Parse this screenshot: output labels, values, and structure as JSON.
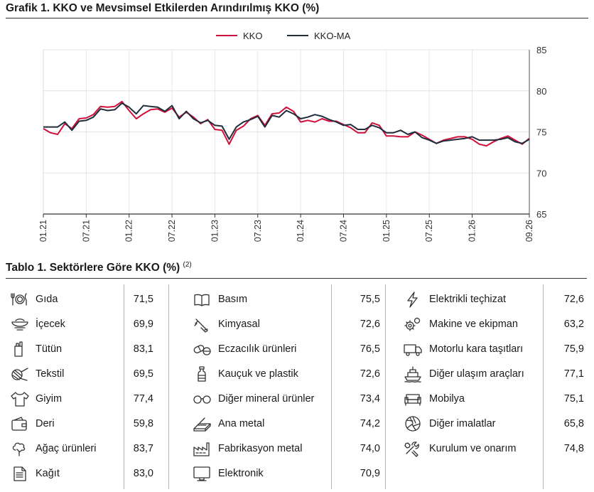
{
  "figure_title": "Grafik 1. KKO ve Mevsimsel Etkilerden Arındırılmış KKO (%)",
  "chart_data": {
    "type": "line",
    "x_ticks": [
      "01.21",
      "07.21",
      "01.22",
      "07.22",
      "01.23",
      "07.23",
      "01.24",
      "07.24",
      "01.25",
      "07.25",
      "01.26",
      "09.26"
    ],
    "y_ticks": [
      65,
      70,
      75,
      80,
      85
    ],
    "ylim": [
      65,
      85
    ],
    "x_start": "01.21",
    "x_end": "09.26",
    "legend_position": "top-center",
    "grid": "horizontal-and-vertical-light",
    "colors": {
      "KKO": "#d0103a",
      "KKO-MA": "#1f2d3d"
    },
    "series": [
      {
        "name": "KKO",
        "values": [
          75.4,
          74.9,
          74.7,
          76.0,
          75.4,
          76.6,
          76.7,
          77.1,
          78.1,
          78.0,
          78.1,
          78.7,
          77.6,
          76.6,
          77.2,
          77.7,
          77.8,
          77.4,
          77.9,
          76.8,
          77.4,
          76.8,
          76.0,
          76.5,
          75.3,
          75.2,
          73.5,
          75.2,
          75.7,
          76.6,
          77.0,
          75.8,
          77.2,
          77.3,
          78.0,
          77.5,
          76.2,
          76.4,
          76.2,
          76.6,
          76.3,
          76.3,
          75.9,
          75.5,
          74.9,
          74.9,
          76.1,
          75.8,
          74.5,
          74.5,
          74.4,
          74.4,
          75.0,
          74.6,
          74.1,
          73.6,
          74.0,
          74.2,
          74.4,
          74.4,
          74.1,
          73.5,
          73.3,
          73.8,
          74.2,
          74.5,
          74.0,
          73.5,
          74.2
        ]
      },
      {
        "name": "KKO-MA",
        "values": [
          75.6,
          75.6,
          75.6,
          76.2,
          75.2,
          76.3,
          76.4,
          76.8,
          77.8,
          77.6,
          77.7,
          78.5,
          78.0,
          77.2,
          78.2,
          78.1,
          78.0,
          77.5,
          78.2,
          76.6,
          77.5,
          76.6,
          76.1,
          76.4,
          75.8,
          75.7,
          74.1,
          75.6,
          76.2,
          76.5,
          76.9,
          75.6,
          77.0,
          76.8,
          77.6,
          77.2,
          76.6,
          76.8,
          77.1,
          76.9,
          76.5,
          76.2,
          75.8,
          75.9,
          75.3,
          75.3,
          75.8,
          75.5,
          74.9,
          74.9,
          75.2,
          74.7,
          75.0,
          74.3,
          74.0,
          73.6,
          73.9,
          74.0,
          74.1,
          74.2,
          74.4,
          74.0,
          74.0,
          74.0,
          74.1,
          74.3,
          73.8,
          73.6,
          74.1
        ]
      }
    ]
  },
  "table": {
    "title": "Tablo 1. Sektörlere Göre KKO (%)",
    "title_note": "(2)",
    "columns": [
      [
        {
          "icon": "cutlery-icon",
          "label": "Gıda",
          "value": "71,5"
        },
        {
          "icon": "bowl-icon",
          "label": "İçecek",
          "value": "69,9"
        },
        {
          "icon": "tobacco-icon",
          "label": "Tütün",
          "value": "83,1"
        },
        {
          "icon": "yarn-icon",
          "label": "Tekstil",
          "value": "69,5"
        },
        {
          "icon": "shirt-icon",
          "label": "Giyim",
          "value": "77,4"
        },
        {
          "icon": "wallet-icon",
          "label": "Deri",
          "value": "59,8"
        },
        {
          "icon": "tree-icon",
          "label": "Ağaç ürünleri",
          "value": "83,7"
        },
        {
          "icon": "paper-icon",
          "label": "Kağıt",
          "value": "83,0"
        }
      ],
      [
        {
          "icon": "book-icon",
          "label": "Basım",
          "value": "75,5"
        },
        {
          "icon": "chemical-icon",
          "label": "Kimyasal",
          "value": "72,6"
        },
        {
          "icon": "pill-icon",
          "label": "Eczacılık ürünleri",
          "value": "76,5"
        },
        {
          "icon": "bottle-icon",
          "label": "Kauçuk ve plastik",
          "value": "72,6"
        },
        {
          "icon": "glasses-icon",
          "label": "Diğer mineral ürünler",
          "value": "73,4"
        },
        {
          "icon": "metal-icon",
          "label": "Ana metal",
          "value": "74,2"
        },
        {
          "icon": "factory-icon",
          "label": "Fabrikasyon metal",
          "value": "74,0"
        },
        {
          "icon": "monitor-icon",
          "label": "Elektronik",
          "value": "70,9"
        }
      ],
      [
        {
          "icon": "lightning-icon",
          "label": "Elektrikli teçhizat",
          "value": "72,6"
        },
        {
          "icon": "gears-icon",
          "label": "Makine ve ekipman",
          "value": "63,2"
        },
        {
          "icon": "truck-icon",
          "label": "Motorlu kara taşıtları",
          "value": "75,9"
        },
        {
          "icon": "ship-icon",
          "label": "Diğer ulaşım araçları",
          "value": "77,1"
        },
        {
          "icon": "sofa-icon",
          "label": "Mobilya",
          "value": "75,1"
        },
        {
          "icon": "aperture-icon",
          "label": "Diğer imalatlar",
          "value": "65,8"
        },
        {
          "icon": "tools-icon",
          "label": "Kurulum ve onarım",
          "value": "74,8"
        }
      ]
    ]
  }
}
